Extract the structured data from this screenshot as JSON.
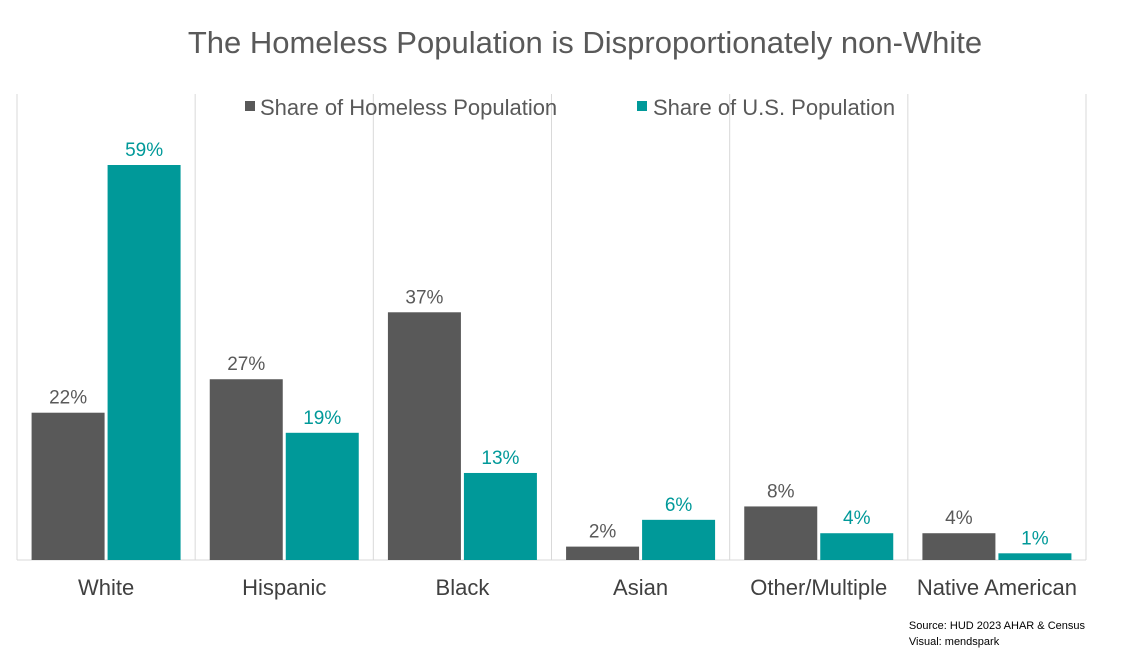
{
  "chart_data": {
    "type": "bar",
    "title": "The Homeless Population is Disproportionately non-White",
    "categories": [
      "White",
      "Hispanic",
      "Black",
      "Asian",
      "Other/Multiple",
      "Native American"
    ],
    "series": [
      {
        "name": "Share of Homeless Population",
        "values": [
          22,
          27,
          37,
          2,
          8,
          4
        ],
        "labels": [
          "22%",
          "27%",
          "37%",
          "2%",
          "8%",
          "4%"
        ],
        "color": "#595959"
      },
      {
        "name": "Share of U.S. Population",
        "values": [
          59,
          19,
          13,
          6,
          4,
          1
        ],
        "labels": [
          "59%",
          "19%",
          "13%",
          "6%",
          "4%",
          "1%"
        ],
        "color": "#009999"
      }
    ],
    "xlabel": "",
    "ylabel": "",
    "ylim": [
      0,
      70
    ],
    "legend_position": "top"
  },
  "source": {
    "line1": "Source: HUD 2023 AHAR & Census",
    "line2": "Visual: mendspark"
  }
}
